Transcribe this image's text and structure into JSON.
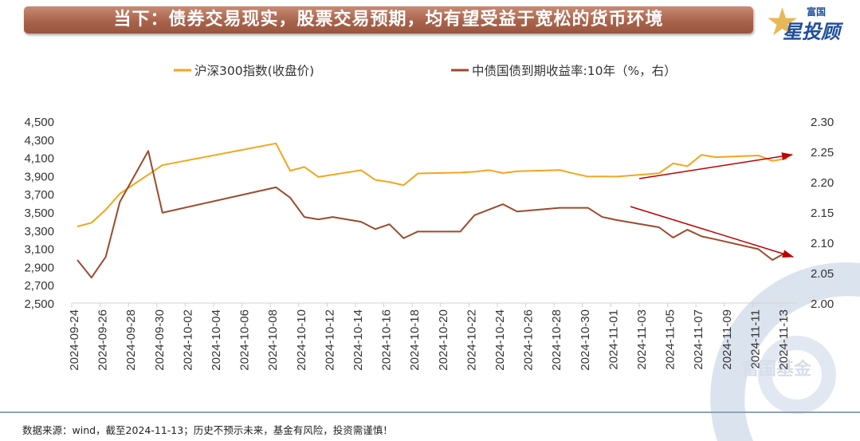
{
  "header": {
    "title": "当下：债券交易现实，股票交易预期，均有望受益于宽松的货币环境"
  },
  "logo": {
    "brand": "富国",
    "product": "星投顾"
  },
  "watermark": {
    "text": "富国基金"
  },
  "footer": {
    "text": "数据来源：wind，截至2024-11-13；历史不预示未来，基金有风险，投资需谨慎！"
  },
  "colors": {
    "csi300": "#f4a51c",
    "bond": "#9c4a2c",
    "arrow": "#c00000"
  },
  "chart_data": {
    "type": "line",
    "title": "",
    "x_start": "2024-09-24",
    "x_end": "2024-11-13",
    "x_tick_labels": [
      "2024-09-24",
      "2024-09-26",
      "2024-09-28",
      "2024-09-30",
      "2024-10-02",
      "2024-10-04",
      "2024-10-06",
      "2024-10-08",
      "2024-10-10",
      "2024-10-12",
      "2024-10-14",
      "2024-10-16",
      "2024-10-18",
      "2024-10-20",
      "2024-10-22",
      "2024-10-24",
      "2024-10-26",
      "2024-10-28",
      "2024-10-30",
      "2024-11-01",
      "2024-11-03",
      "2024-11-05",
      "2024-11-07",
      "2024-11-09",
      "2024-11-11",
      "2024-11-13"
    ],
    "y_left": {
      "range": [
        2500,
        4500
      ],
      "tick_labels": [
        "4,500",
        "4,300",
        "4,100",
        "3,900",
        "3,700",
        "3,500",
        "3,300",
        "3,100",
        "2,900",
        "2,700",
        "2,500"
      ]
    },
    "y_right": {
      "range": [
        2.0,
        2.3
      ],
      "tick_labels": [
        "2.30",
        "2.25",
        "2.20",
        "2.15",
        "2.10",
        "2.05",
        "2.00"
      ]
    },
    "legend_position": "top-center",
    "series": [
      {
        "name": "沪深300指数(收盘价)",
        "axis": "left",
        "x": [
          "2024-09-24",
          "2024-09-25",
          "2024-09-26",
          "2024-09-27",
          "2024-09-30",
          "2024-10-08",
          "2024-10-09",
          "2024-10-10",
          "2024-10-11",
          "2024-10-14",
          "2024-10-15",
          "2024-10-16",
          "2024-10-17",
          "2024-10-18",
          "2024-10-21",
          "2024-10-22",
          "2024-10-23",
          "2024-10-24",
          "2024-10-25",
          "2024-10-28",
          "2024-10-29",
          "2024-10-30",
          "2024-10-31",
          "2024-11-01",
          "2024-11-04",
          "2024-11-05",
          "2024-11-06",
          "2024-11-07",
          "2024-11-08",
          "2024-11-11",
          "2024-11-12",
          "2024-11-13"
        ],
        "values": [
          3342,
          3383,
          3526,
          3703,
          4017,
          4256,
          3955,
          3997,
          3887,
          3961,
          3855,
          3831,
          3796,
          3925,
          3935,
          3944,
          3962,
          3930,
          3950,
          3963,
          3925,
          3891,
          3892,
          3890,
          3928,
          4036,
          4005,
          4130,
          4104,
          4123,
          4063,
          4090
        ]
      },
      {
        "name": "中债国债到期收益率:10年（%，右）",
        "axis": "right",
        "x": [
          "2024-09-24",
          "2024-09-25",
          "2024-09-26",
          "2024-09-27",
          "2024-09-29",
          "2024-09-30",
          "2024-10-08",
          "2024-10-09",
          "2024-10-10",
          "2024-10-11",
          "2024-10-12",
          "2024-10-14",
          "2024-10-15",
          "2024-10-16",
          "2024-10-17",
          "2024-10-18",
          "2024-10-21",
          "2024-10-22",
          "2024-10-24",
          "2024-10-25",
          "2024-10-28",
          "2024-10-30",
          "2024-10-31",
          "2024-11-01",
          "2024-11-04",
          "2024-11-05",
          "2024-11-06",
          "2024-11-07",
          "2024-11-08",
          "2024-11-11",
          "2024-11-12",
          "2024-11-13"
        ],
        "values": [
          2.071,
          2.042,
          2.076,
          2.167,
          2.251,
          2.149,
          2.191,
          2.174,
          2.142,
          2.138,
          2.142,
          2.134,
          2.122,
          2.13,
          2.107,
          2.118,
          2.118,
          2.145,
          2.163,
          2.151,
          2.157,
          2.157,
          2.142,
          2.137,
          2.125,
          2.108,
          2.121,
          2.11,
          2.105,
          2.089,
          2.071,
          2.084
        ]
      }
    ]
  }
}
